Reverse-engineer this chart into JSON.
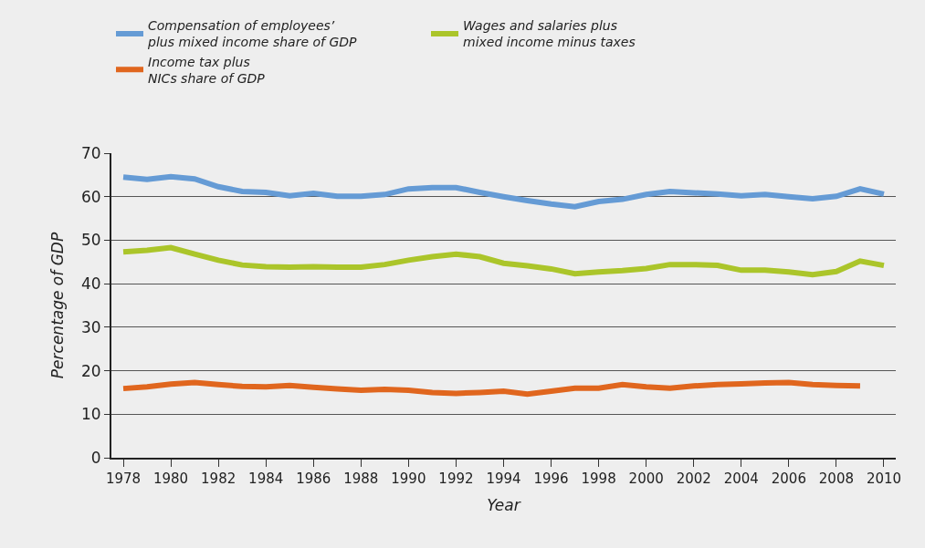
{
  "chart_data": {
    "type": "line",
    "xlabel": "Year",
    "ylabel": "Percentage of GDP",
    "categories": [
      "1978",
      null,
      "1980",
      null,
      "1982",
      null,
      "1984",
      null,
      "1986",
      null,
      "1988",
      null,
      "1990",
      null,
      "1992",
      null,
      "1994",
      null,
      "1996",
      null,
      "1998",
      null,
      "2000",
      null,
      "2002",
      null,
      "2004",
      null,
      "2006",
      null,
      "2008",
      null,
      "2010"
    ],
    "series": [
      {
        "name": "Compensation of employees’ plus mixed income share of GDP",
        "color": "#659bd5",
        "values": [
          64.5,
          64.0,
          64.6,
          64.1,
          62.3,
          61.2,
          61.0,
          60.2,
          60.8,
          60.1,
          60.1,
          60.5,
          61.8,
          62.1,
          62.1,
          61.0,
          60.0,
          59.1,
          58.3,
          57.7,
          58.9,
          59.4,
          60.5,
          61.2,
          60.9,
          60.6,
          60.2,
          60.5,
          60.0,
          59.5,
          60.1,
          61.8,
          60.6
        ]
      },
      {
        "name": "Wages and salaries plus mixed income minus taxes",
        "color": "#abc52a",
        "values": [
          47.3,
          47.7,
          48.3,
          46.8,
          45.4,
          44.3,
          43.9,
          43.8,
          43.9,
          43.8,
          43.8,
          44.4,
          45.4,
          46.2,
          46.8,
          46.2,
          44.7,
          44.1,
          43.4,
          42.3,
          42.7,
          43.0,
          43.5,
          44.4,
          44.4,
          44.2,
          43.1,
          43.1,
          42.7,
          42.1,
          42.8,
          45.2,
          44.2
        ]
      },
      {
        "name": "Income tax plus NICs share of GDP",
        "color": "#e0661e",
        "values": [
          15.9,
          16.3,
          16.9,
          17.3,
          16.8,
          16.4,
          16.3,
          16.6,
          16.2,
          15.8,
          15.5,
          15.7,
          15.5,
          15.0,
          14.8,
          15.0,
          15.3,
          14.6,
          15.3,
          16.0,
          16.0,
          16.8,
          16.3,
          16.0,
          16.5,
          16.8,
          17.0,
          17.2,
          17.3,
          16.8,
          16.6,
          16.5,
          null
        ]
      }
    ],
    "ylim": [
      0,
      70
    ],
    "yticks": [
      0,
      10,
      20,
      30,
      40,
      50,
      60,
      70
    ],
    "grid": "y",
    "legend": "top",
    "marker": "none",
    "line_style": "solid"
  }
}
